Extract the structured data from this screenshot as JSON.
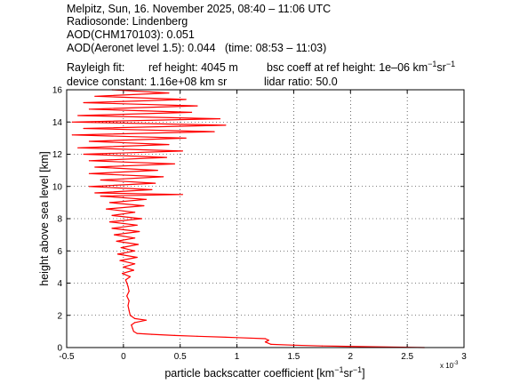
{
  "header": {
    "line1": "Melpitz, Sun, 16. November 2025, 08:40 – 11:06 UTC",
    "line2": "Radiosonde: Lindenberg",
    "line3": "AOD(CHM170103): 0.051",
    "line4": "AOD(Aeronet level 1.5): 0.044   (time: 08:53 – 11:03)",
    "rayleigh_label": "Rayleigh fit:",
    "ref_height": "ref height: 4045 m",
    "bsc_coeff_prefix": "bsc coeff at ref height: 1e–06 km",
    "device_constant": "device constant: 1.16e+08 km sr",
    "lidar_ratio": "lidar ratio: 50.0"
  },
  "chart_data": {
    "type": "line",
    "xlabel_prefix": "particle backscatter coefficient [km",
    "ylabel": "height above sea level [km]",
    "x_multiplier_label": "x 10",
    "x_multiplier_exp": "-3",
    "xlim": [
      -0.5,
      3
    ],
    "ylim": [
      0,
      16
    ],
    "xticks": [
      -0.5,
      0,
      0.5,
      1,
      1.5,
      2,
      2.5,
      3
    ],
    "xtick_labels": [
      "-0.5",
      "0",
      "0.5",
      "1",
      "1.5",
      "2",
      "2.5",
      "3"
    ],
    "yticks": [
      0,
      2,
      4,
      6,
      8,
      10,
      12,
      14,
      16
    ],
    "ytick_labels": [
      "0",
      "2",
      "4",
      "6",
      "8",
      "10",
      "12",
      "14",
      "16"
    ],
    "grid": true,
    "series": [
      {
        "color": "#ff0000",
        "points": [
          [
            2.65,
            0.0
          ],
          [
            2.2,
            0.05
          ],
          [
            1.75,
            0.1
          ],
          [
            1.5,
            0.15
          ],
          [
            1.3,
            0.2
          ],
          [
            1.25,
            0.35
          ],
          [
            1.28,
            0.45
          ],
          [
            1.25,
            0.55
          ],
          [
            1.0,
            0.62
          ],
          [
            0.65,
            0.7
          ],
          [
            0.45,
            0.75
          ],
          [
            0.25,
            0.82
          ],
          [
            0.12,
            0.88
          ],
          [
            0.09,
            1.0
          ],
          [
            0.08,
            1.2
          ],
          [
            0.07,
            1.4
          ],
          [
            0.1,
            1.55
          ],
          [
            0.2,
            1.7
          ],
          [
            0.1,
            1.8
          ],
          [
            0.06,
            2.0
          ],
          [
            0.05,
            2.3
          ],
          [
            0.04,
            2.6
          ],
          [
            0.05,
            2.9
          ],
          [
            0.03,
            3.2
          ],
          [
            0.05,
            3.5
          ],
          [
            0.04,
            3.8
          ],
          [
            0.03,
            4.0
          ],
          [
            0.02,
            4.2
          ],
          [
            0.06,
            4.4
          ],
          [
            -0.01,
            4.6
          ],
          [
            0.09,
            4.8
          ],
          [
            0.0,
            5.0
          ],
          [
            0.1,
            5.2
          ],
          [
            -0.03,
            5.4
          ],
          [
            0.12,
            5.6
          ],
          [
            -0.05,
            5.8
          ],
          [
            0.1,
            6.0
          ],
          [
            -0.02,
            6.2
          ],
          [
            0.13,
            6.4
          ],
          [
            -0.06,
            6.6
          ],
          [
            0.1,
            6.8
          ],
          [
            -0.08,
            7.0
          ],
          [
            0.14,
            7.2
          ],
          [
            -0.1,
            7.4
          ],
          [
            0.12,
            7.6
          ],
          [
            -0.12,
            7.8
          ],
          [
            0.16,
            8.0
          ],
          [
            -0.1,
            8.2
          ],
          [
            0.1,
            8.4
          ],
          [
            -0.15,
            8.6
          ],
          [
            0.18,
            8.8
          ],
          [
            -0.12,
            9.0
          ],
          [
            0.2,
            9.2
          ],
          [
            -0.2,
            9.4
          ],
          [
            0.52,
            9.5
          ],
          [
            -0.25,
            9.6
          ],
          [
            0.25,
            9.8
          ],
          [
            -0.3,
            10.0
          ],
          [
            0.28,
            10.2
          ],
          [
            -0.2,
            10.4
          ],
          [
            0.35,
            10.6
          ],
          [
            -0.3,
            10.8
          ],
          [
            0.3,
            11.0
          ],
          [
            -0.25,
            11.2
          ],
          [
            0.45,
            11.4
          ],
          [
            -0.3,
            11.6
          ],
          [
            0.38,
            11.8
          ],
          [
            -0.35,
            12.0
          ],
          [
            0.52,
            12.2
          ],
          [
            -0.4,
            12.4
          ],
          [
            0.4,
            12.6
          ],
          [
            -0.3,
            12.8
          ],
          [
            0.55,
            13.0
          ],
          [
            -0.45,
            13.2
          ],
          [
            0.8,
            13.4
          ],
          [
            -0.35,
            13.6
          ],
          [
            0.9,
            13.8
          ],
          [
            -0.45,
            14.0
          ],
          [
            0.85,
            14.2
          ],
          [
            -0.4,
            14.4
          ],
          [
            0.6,
            14.6
          ],
          [
            -0.3,
            14.8
          ],
          [
            0.65,
            15.0
          ],
          [
            -0.35,
            15.2
          ],
          [
            0.55,
            15.4
          ],
          [
            -0.25,
            15.6
          ],
          [
            0.4,
            15.8
          ],
          [
            -0.1,
            16.0
          ]
        ]
      }
    ]
  }
}
